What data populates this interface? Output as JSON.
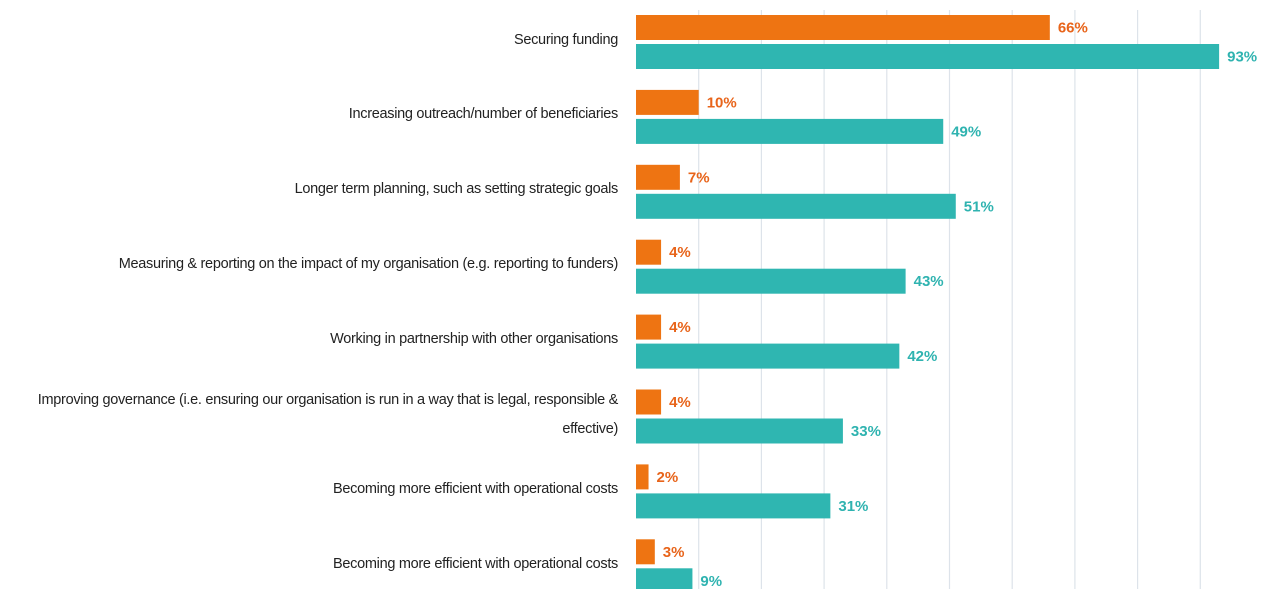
{
  "chart_data": {
    "type": "bar",
    "orientation": "horizontal",
    "categories": [
      "Securing funding",
      "Increasing outreach/number of beneficiaries",
      "Longer term planning, such as setting strategic goals",
      "Measuring & reporting on the impact of my organisation (e.g. reporting to funders)",
      "Working in partnership with other organisations",
      "Improving governance (i.e. ensuring our organisation is run in a way that is legal, responsible & effective)",
      "Becoming more efficient with operational costs",
      "Becoming more efficient with operational costs"
    ],
    "series": [
      {
        "color": "#ee7412",
        "values": [
          66,
          10,
          7,
          4,
          4,
          4,
          2,
          3
        ],
        "value_labels": [
          "66%",
          "10%",
          "7%",
          "4%",
          "4%",
          "4%",
          "2%",
          "3%"
        ]
      },
      {
        "color": "#2fb6b1",
        "values": [
          93,
          49,
          51,
          43,
          42,
          33,
          31,
          9
        ],
        "value_labels": [
          "93%",
          "49%",
          "51%",
          "43%",
          "42%",
          "33%",
          "31%",
          "9%"
        ]
      }
    ],
    "xlim": [
      0,
      100
    ],
    "xticks": [
      10,
      20,
      30,
      40,
      50,
      60,
      70,
      80,
      90
    ],
    "grid": true
  }
}
